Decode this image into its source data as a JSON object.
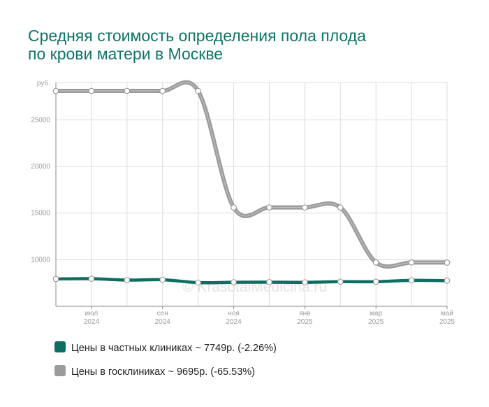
{
  "title": {
    "line1": "Средняя стоимость определения пола плода",
    "line2": "по крови матери в Москве"
  },
  "watermark": "© KrasotaiMedicina.ru",
  "colors": {
    "title": "#0f7468",
    "private": "#0f6e64",
    "public": "#9b9b9b",
    "grid": "#dcdcdc"
  },
  "legend": [
    {
      "label": "Цены в частных клиниках ~ 7749р. (-2.26%)",
      "color": "#0f6e64"
    },
    {
      "label": "Цены в госклиниках ~ 9695р. (-65.53%)",
      "color": "#9b9b9b"
    }
  ],
  "chart_data": {
    "type": "line",
    "y_unit": "руб.",
    "ylim": [
      5000,
      29000
    ],
    "yticks": [
      10000,
      15000,
      20000,
      25000
    ],
    "ytick_labels": [
      "10000",
      "15000",
      "20000",
      "25000"
    ],
    "x": [
      "2024-06",
      "2024-07",
      "2024-08",
      "2024-09",
      "2024-10",
      "2024-11",
      "2024-12",
      "2025-01",
      "2025-02",
      "2025-03",
      "2025-04",
      "2025-05"
    ],
    "xtick_labels": [
      {
        "index": 1,
        "month": "июл",
        "year": "2024"
      },
      {
        "index": 3,
        "month": "сен",
        "year": "2024"
      },
      {
        "index": 5,
        "month": "ноя",
        "year": "2024"
      },
      {
        "index": 7,
        "month": "янв",
        "year": "2025"
      },
      {
        "index": 9,
        "month": "мар",
        "year": "2025"
      },
      {
        "index": 11,
        "month": "май",
        "year": "2025"
      }
    ],
    "grid": true,
    "legend_position": "bottom",
    "series": [
      {
        "name": "Цены в частных клиниках",
        "key": "private",
        "values": [
          7930,
          7960,
          7810,
          7850,
          7540,
          7580,
          7590,
          7570,
          7640,
          7640,
          7780,
          7749
        ]
      },
      {
        "name": "Цены в госклиниках",
        "key": "public",
        "values": [
          28100,
          28100,
          28100,
          28100,
          28100,
          15600,
          15600,
          15600,
          15600,
          9700,
          9700,
          9695
        ]
      }
    ]
  }
}
